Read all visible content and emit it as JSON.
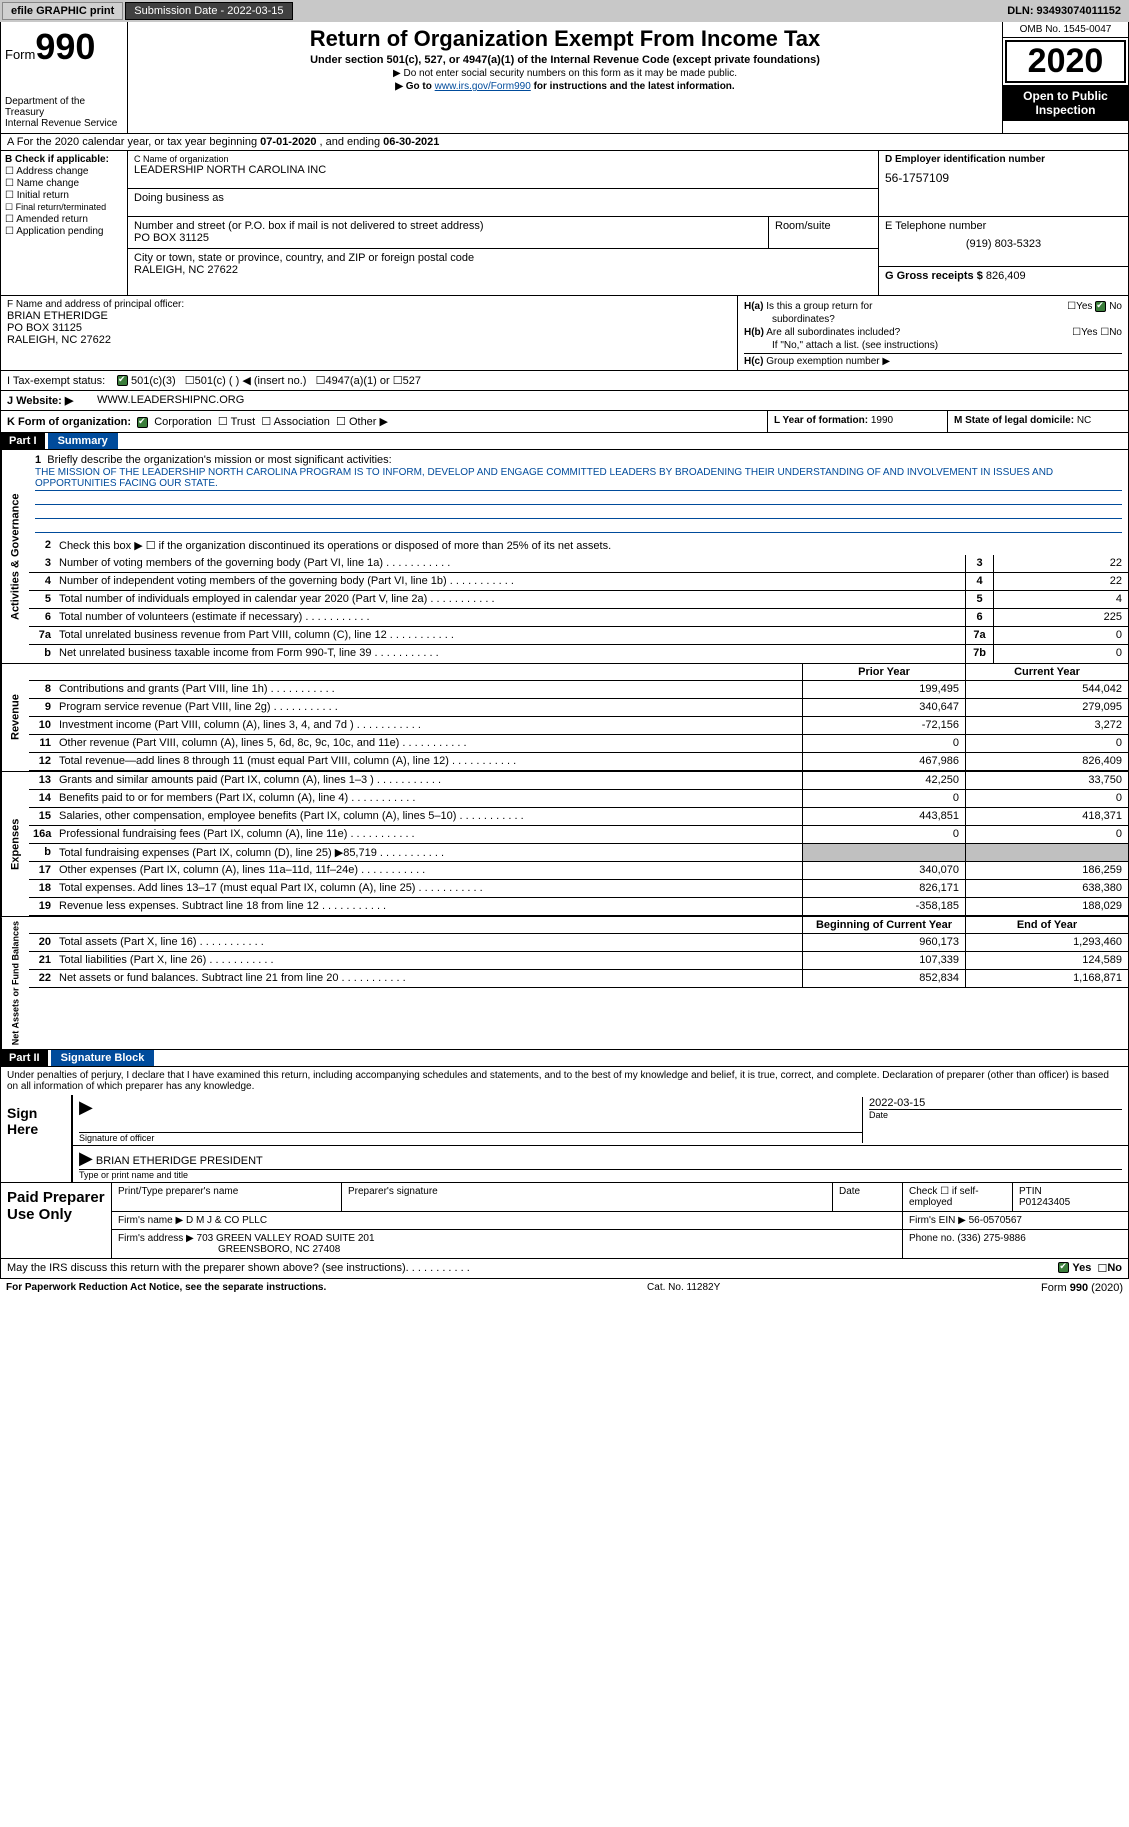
{
  "topbar": {
    "efile": "efile GRAPHIC print",
    "submission_label": "Submission Date - 2022-03-15",
    "dln": "DLN: 93493074011152"
  },
  "header": {
    "form_prefix": "Form",
    "form_number": "990",
    "dept": "Department of the Treasury\nInternal Revenue Service",
    "title": "Return of Organization Exempt From Income Tax",
    "subtitle": "Under section 501(c), 527, or 4947(a)(1) of the Internal Revenue Code (except private foundations)",
    "note1": "▶ Do not enter social security numbers on this form as it may be made public.",
    "note2_pre": "▶ Go to ",
    "note2_link": "www.irs.gov/Form990",
    "note2_post": " for instructions and the latest information.",
    "omb": "OMB No. 1545-0047",
    "year": "2020",
    "open": "Open to Public Inspection"
  },
  "period": {
    "prefix": "A For the 2020 calendar year, or tax year beginning ",
    "begin": "07-01-2020",
    "mid": " , and ending ",
    "end": "06-30-2021"
  },
  "checkboxes": {
    "header": "B Check if applicable:",
    "items": [
      "Address change",
      "Name change",
      "Initial return",
      "Final return/terminated",
      "Amended return",
      "Application pending"
    ]
  },
  "org": {
    "name_lbl": "C Name of organization",
    "name": "LEADERSHIP NORTH CAROLINA INC",
    "dba_lbl": "Doing business as",
    "dba": "",
    "addr_lbl": "Number and street (or P.O. box if mail is not delivered to street address)",
    "addr": "PO BOX 31125",
    "room_lbl": "Room/suite",
    "room": "",
    "city_lbl": "City or town, state or province, country, and ZIP or foreign postal code",
    "city": "RALEIGH, NC  27622"
  },
  "right": {
    "ein_lbl": "D Employer identification number",
    "ein": "56-1757109",
    "phone_lbl": "E Telephone number",
    "phone": "(919) 803-5323",
    "gross_lbl": "G Gross receipts $ ",
    "gross": "826,409"
  },
  "officer": {
    "lbl": "F Name and address of principal officer:",
    "name": "BRIAN ETHERIDGE",
    "addr": "PO BOX 31125",
    "city": "RALEIGH, NC  27622"
  },
  "ha": {
    "a_lbl": "H(a) Is this a group return for subordinates?",
    "a_yes": "Yes",
    "a_no": "No",
    "b_lbl": "H(b) Are all subordinates included?",
    "b_yes": "Yes",
    "b_no": "No",
    "b_note": "If \"No,\" attach a list. (see instructions)",
    "c_lbl": "H(c) Group exemption number ▶"
  },
  "status": {
    "lbl": "I    Tax-exempt status:",
    "opt1": "501(c)(3)",
    "opt2": "501(c) (   ) ◀ (insert no.)",
    "opt3": "4947(a)(1) or",
    "opt4": "527"
  },
  "website": {
    "lbl": "J   Website: ▶",
    "val": "WWW.LEADERSHIPNC.ORG"
  },
  "formorg": {
    "lbl": "K Form of organization:",
    "opt1": "Corporation",
    "opt2": "Trust",
    "opt3": "Association",
    "opt4": "Other ▶",
    "year_lbl": "L Year of formation: ",
    "year": "1990",
    "state_lbl": "M State of legal domicile: ",
    "state": "NC"
  },
  "parts": {
    "p1": "Part I",
    "p1_title": "Summary",
    "p2": "Part II",
    "p2_title": "Signature Block"
  },
  "mission": {
    "lbl": "1   Briefly describe the organization's mission or most significant activities:",
    "text": "THE MISSION OF THE LEADERSHIP NORTH CAROLINA PROGRAM IS TO INFORM, DEVELOP AND ENGAGE COMMITTED LEADERS BY BROADENING THEIR UNDERSTANDING OF AND INVOLVEMENT IN ISSUES AND OPPORTUNITIES FACING OUR STATE."
  },
  "gov_lines": {
    "l2": "Check this box ▶ ☐  if the organization discontinued its operations or disposed of more than 25% of its net assets.",
    "l3": "Number of voting members of the governing body (Part VI, line 1a)",
    "l3_box": "3",
    "l3_val": "22",
    "l4": "Number of independent voting members of the governing body (Part VI, line 1b)",
    "l4_box": "4",
    "l4_val": "22",
    "l5": "Total number of individuals employed in calendar year 2020 (Part V, line 2a)",
    "l5_box": "5",
    "l5_val": "4",
    "l6": "Total number of volunteers (estimate if necessary)",
    "l6_box": "6",
    "l6_val": "225",
    "l7a": "Total unrelated business revenue from Part VIII, column (C), line 12",
    "l7a_box": "7a",
    "l7a_val": "0",
    "l7b": "Net unrelated business taxable income from Form 990-T, line 39",
    "l7b_box": "7b",
    "l7b_val": "0"
  },
  "col_headers": {
    "prior": "Prior Year",
    "current": "Current Year",
    "begin": "Beginning of Current Year",
    "end": "End of Year"
  },
  "revenue": [
    {
      "n": "8",
      "t": "Contributions and grants (Part VIII, line 1h)",
      "p": "199,495",
      "c": "544,042"
    },
    {
      "n": "9",
      "t": "Program service revenue (Part VIII, line 2g)",
      "p": "340,647",
      "c": "279,095"
    },
    {
      "n": "10",
      "t": "Investment income (Part VIII, column (A), lines 3, 4, and 7d )",
      "p": "-72,156",
      "c": "3,272"
    },
    {
      "n": "11",
      "t": "Other revenue (Part VIII, column (A), lines 5, 6d, 8c, 9c, 10c, and 11e)",
      "p": "0",
      "c": "0"
    },
    {
      "n": "12",
      "t": "Total revenue—add lines 8 through 11 (must equal Part VIII, column (A), line 12)",
      "p": "467,986",
      "c": "826,409"
    }
  ],
  "expenses": [
    {
      "n": "13",
      "t": "Grants and similar amounts paid (Part IX, column (A), lines 1–3 )",
      "p": "42,250",
      "c": "33,750"
    },
    {
      "n": "14",
      "t": "Benefits paid to or for members (Part IX, column (A), line 4)",
      "p": "0",
      "c": "0"
    },
    {
      "n": "15",
      "t": "Salaries, other compensation, employee benefits (Part IX, column (A), lines 5–10)",
      "p": "443,851",
      "c": "418,371"
    },
    {
      "n": "16a",
      "t": "Professional fundraising fees (Part IX, column (A), line 11e)",
      "p": "0",
      "c": "0"
    },
    {
      "n": "b",
      "t": "Total fundraising expenses (Part IX, column (D), line 25) ▶85,719",
      "p": "",
      "c": "",
      "gray": true
    },
    {
      "n": "17",
      "t": "Other expenses (Part IX, column (A), lines 11a–11d, 11f–24e)",
      "p": "340,070",
      "c": "186,259"
    },
    {
      "n": "18",
      "t": "Total expenses. Add lines 13–17 (must equal Part IX, column (A), line 25)",
      "p": "826,171",
      "c": "638,380"
    },
    {
      "n": "19",
      "t": "Revenue less expenses. Subtract line 18 from line 12",
      "p": "-358,185",
      "c": "188,029"
    }
  ],
  "netassets": [
    {
      "n": "20",
      "t": "Total assets (Part X, line 16)",
      "p": "960,173",
      "c": "1,293,460"
    },
    {
      "n": "21",
      "t": "Total liabilities (Part X, line 26)",
      "p": "107,339",
      "c": "124,589"
    },
    {
      "n": "22",
      "t": "Net assets or fund balances. Subtract line 21 from line 20",
      "p": "852,834",
      "c": "1,168,871"
    }
  ],
  "sidelabels": {
    "gov": "Activities & Governance",
    "rev": "Revenue",
    "exp": "Expenses",
    "net": "Net Assets or Fund Balances"
  },
  "sig": {
    "declaration": "Under penalties of perjury, I declare that I have examined this return, including accompanying schedules and statements, and to the best of my knowledge and belief, it is true, correct, and complete. Declaration of preparer (other than officer) is based on all information of which preparer has any knowledge.",
    "sign_here": "Sign Here",
    "sig_officer": "Signature of officer",
    "date_lbl": "Date",
    "sig_date": "2022-03-15",
    "name_title": "BRIAN ETHERIDGE  PRESIDENT",
    "type_name": "Type or print name and title"
  },
  "paid": {
    "label": "Paid Preparer Use Only",
    "print_name_lbl": "Print/Type preparer's name",
    "print_name": "",
    "prep_sig_lbl": "Preparer's signature",
    "date_lbl": "Date",
    "check_lbl": "Check ☐ if self-employed",
    "ptin_lbl": "PTIN",
    "ptin": "P01243405",
    "firm_name_lbl": "Firm's name    ▶",
    "firm_name": "D M J & CO PLLC",
    "firm_ein_lbl": "Firm's EIN ▶",
    "firm_ein": "56-0570567",
    "firm_addr_lbl": "Firm's address ▶",
    "firm_addr1": "703 GREEN VALLEY ROAD SUITE 201",
    "firm_addr2": "GREENSBORO, NC  27408",
    "phone_lbl": "Phone no. ",
    "phone": "(336) 275-9886"
  },
  "discuss": {
    "text": "May the IRS discuss this return with the preparer shown above? (see instructions)",
    "yes": "Yes",
    "no": "No"
  },
  "footer": {
    "left": "For Paperwork Reduction Act Notice, see the separate instructions.",
    "mid": "Cat. No. 11282Y",
    "right": "Form 990 (2020)"
  }
}
